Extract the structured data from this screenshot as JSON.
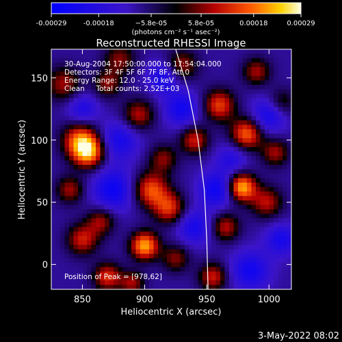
{
  "chart_data": {
    "type": "heatmap",
    "title": "Reconstructed RHESSI Image",
    "xlabel": "Heliocentric X (arcsec)",
    "ylabel": "Heliocentric Y (arcsec)",
    "xlim": [
      825,
      1018
    ],
    "ylim": [
      -20,
      173
    ],
    "x_ticks": [
      850,
      900,
      950,
      1000
    ],
    "y_ticks": [
      0,
      50,
      100,
      150
    ],
    "colorbar": {
      "range": [
        -0.00029,
        0.00029
      ],
      "tick_values": [
        -0.00029,
        -0.00018,
        -5.8e-05,
        5.8e-05,
        0.00018,
        0.00029
      ],
      "tick_labels": [
        "-0.00029",
        "-0.00018",
        "−5.8e-05",
        "5.8e-05",
        "0.00018",
        "0.00029"
      ],
      "unit_label": "(photons cm⁻² s⁻¹ asec⁻²)"
    },
    "info_lines": [
      "30-Aug-2004 17:50:00.000 to 17:54:04.000",
      "Detectors: 3F 4F 5F 6F 7F 8F, Att 0",
      "Energy Range: 12.0 - 25.0 keV",
      "Clean     Total counts: 2.52E+03"
    ],
    "annotation": "Position of Peak = [978,62]",
    "peak": [
      978,
      62
    ],
    "limb_curve": [
      [
        925,
        173
      ],
      [
        935,
        140
      ],
      [
        943,
        100
      ],
      [
        948,
        60
      ],
      [
        950,
        20
      ],
      [
        951,
        -20
      ]
    ],
    "grid": false,
    "sources": [
      {
        "x": 978,
        "y": 62,
        "v": 1.0,
        "r": 8
      },
      {
        "x": 900,
        "y": 15,
        "v": 0.95,
        "r": 8
      },
      {
        "x": 855,
        "y": 90,
        "v": 0.85,
        "r": 9
      },
      {
        "x": 848,
        "y": 100,
        "v": 0.75,
        "r": 10
      },
      {
        "x": 982,
        "y": 105,
        "v": 0.8,
        "r": 9
      },
      {
        "x": 960,
        "y": 128,
        "v": 0.7,
        "r": 9
      },
      {
        "x": 905,
        "y": 60,
        "v": 0.75,
        "r": 10
      },
      {
        "x": 920,
        "y": 45,
        "v": 0.65,
        "r": 9
      },
      {
        "x": 895,
        "y": 120,
        "v": 0.55,
        "r": 9
      },
      {
        "x": 835,
        "y": 145,
        "v": 0.5,
        "r": 10
      },
      {
        "x": 850,
        "y": 20,
        "v": 0.6,
        "r": 9
      },
      {
        "x": 865,
        "y": 35,
        "v": 0.5,
        "r": 8
      },
      {
        "x": 940,
        "y": 100,
        "v": 0.6,
        "r": 8
      },
      {
        "x": 998,
        "y": 50,
        "v": 0.55,
        "r": 9
      },
      {
        "x": 1005,
        "y": 90,
        "v": 0.5,
        "r": 8
      },
      {
        "x": 955,
        "y": -10,
        "v": 0.6,
        "r": 8
      },
      {
        "x": 930,
        "y": 160,
        "v": 0.5,
        "r": 9
      },
      {
        "x": 880,
        "y": 165,
        "v": 0.45,
        "r": 9
      },
      {
        "x": 990,
        "y": 155,
        "v": 0.5,
        "r": 8
      },
      {
        "x": 965,
        "y": 30,
        "v": 0.55,
        "r": 8
      },
      {
        "x": 840,
        "y": 60,
        "v": 0.5,
        "r": 8
      },
      {
        "x": 925,
        "y": 5,
        "v": 0.45,
        "r": 8
      },
      {
        "x": 870,
        "y": -10,
        "v": 0.65,
        "r": 8
      },
      {
        "x": 915,
        "y": 85,
        "v": 0.45,
        "r": 8
      },
      {
        "x": 870,
        "y": 145,
        "v": 0.45,
        "r": 8
      },
      {
        "x": 1010,
        "y": 130,
        "v": 0.4,
        "r": 8
      },
      {
        "x": 890,
        "y": -15,
        "v": 0.5,
        "r": 7
      },
      {
        "x": 930,
        "y": 125,
        "v": -0.5,
        "r": 10
      },
      {
        "x": 875,
        "y": 60,
        "v": -0.55,
        "r": 12
      },
      {
        "x": 958,
        "y": 60,
        "v": -0.55,
        "r": 10
      },
      {
        "x": 880,
        "y": 100,
        "v": -0.45,
        "r": 11
      },
      {
        "x": 1000,
        "y": 120,
        "v": -0.5,
        "r": 10
      },
      {
        "x": 940,
        "y": 30,
        "v": -0.45,
        "r": 10
      },
      {
        "x": 985,
        "y": -5,
        "v": -0.5,
        "r": 11
      },
      {
        "x": 850,
        "y": 125,
        "v": -0.4,
        "r": 9
      },
      {
        "x": 915,
        "y": 150,
        "v": -0.45,
        "r": 9
      },
      {
        "x": 1010,
        "y": 20,
        "v": -0.45,
        "r": 9
      },
      {
        "x": 970,
        "y": 85,
        "v": -0.35,
        "r": 9
      }
    ]
  },
  "footer": {
    "date_stamp": "3-May-2022 08:02"
  }
}
